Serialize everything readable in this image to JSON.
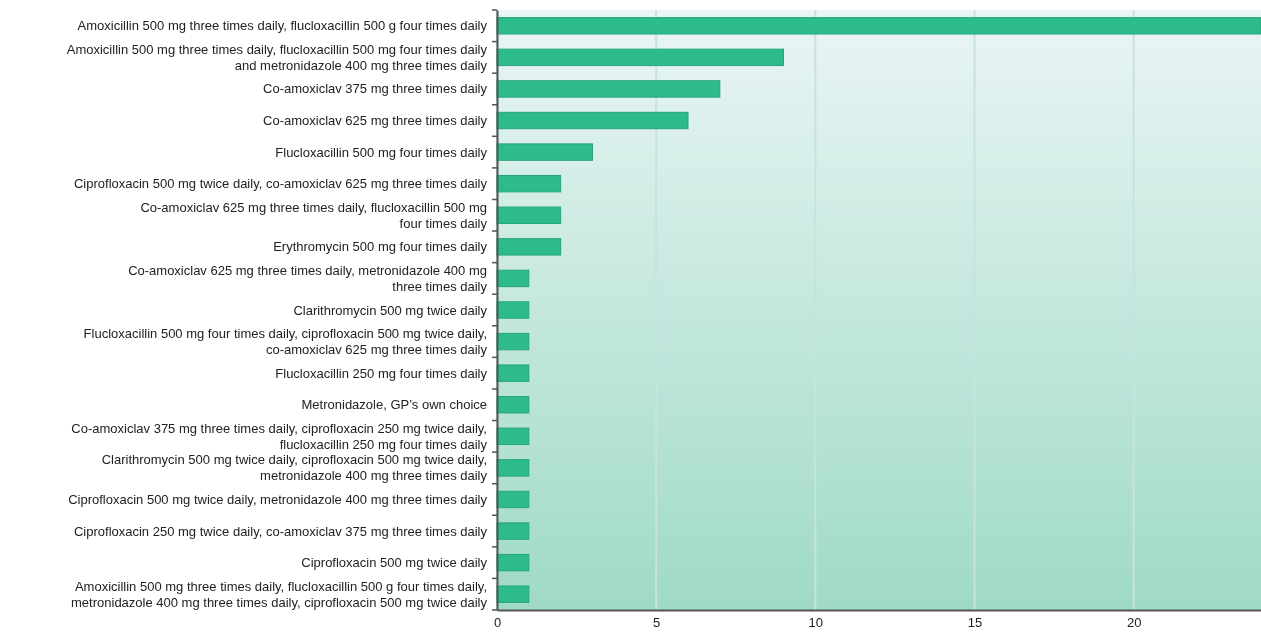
{
  "chart_data": {
    "type": "bar",
    "orientation": "horizontal",
    "categories": [
      "Amoxicillin 500 mg three times daily, flucloxacillin 500 g four times daily",
      "Amoxicillin 500 mg three times daily, flucloxacillin 500 mg four times daily\nand metronidazole 400 mg three times daily",
      "Co-amoxiclav 375 mg three times daily",
      "Co-amoxiclav 625 mg three times daily",
      "Flucloxacillin 500 mg four times daily",
      "Ciprofloxacin 500 mg twice daily, co-amoxiclav 625 mg three times daily",
      "Co-amoxiclav 625 mg three times daily, flucloxacillin 500 mg\nfour times daily",
      "Erythromycin 500 mg four times daily",
      "Co-amoxiclav 625 mg three times daily, metronidazole 400 mg\nthree times daily",
      "Clarithromycin 500 mg twice daily",
      "Flucloxacillin 500 mg four times daily, ciprofloxacin 500 mg twice daily,\nco-amoxiclav 625 mg three times daily",
      "Flucloxacillin 250 mg four times daily",
      "Metronidazole, GP’s own choice",
      "Co-amoxiclav 375 mg three times daily, ciprofloxacin 250 mg twice daily,\nflucloxacillin 250 mg four times daily",
      "Clarithromycin 500 mg twice daily, ciprofloxacin 500 mg twice daily,\nmetronidazole 400 mg three times daily",
      "Ciprofloxacin 500 mg twice daily, metronidazole 400 mg three times daily",
      "Ciprofloxacin 250 mg twice daily, co-amoxiclav 375 mg three times daily",
      "Ciprofloxacin 500 mg twice daily",
      "Amoxicillin 500 mg three times daily, flucloxacillin 500 g four times daily,\nmetronidazole 400 mg three times daily, ciprofloxacin 500 mg twice daily"
    ],
    "values": [
      24,
      9,
      7,
      6,
      3,
      2,
      2,
      2,
      1,
      1,
      1,
      1,
      1,
      1,
      1,
      1,
      1,
      1,
      1
    ],
    "color": "#2dba8c",
    "xlim": [
      0,
      24
    ],
    "xticks": [
      0,
      5,
      10,
      15,
      20
    ],
    "grid": "x"
  }
}
